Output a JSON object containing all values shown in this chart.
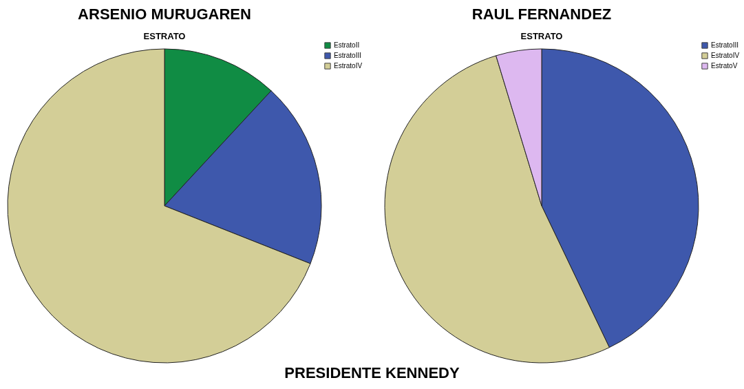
{
  "chart_data": [
    {
      "type": "pie",
      "title": "ARSENIO MURUGAREN",
      "subtitle": "ESTRATO",
      "categories": [
        "EstratoII",
        "EstratoIII",
        "EstratoIV"
      ],
      "values": [
        11.9,
        19.1,
        69.0
      ],
      "colors": [
        "#108c44",
        "#3e58ac",
        "#d3ce97"
      ],
      "legend": "top right",
      "annotations": [
        "PRESIDENTE KENNEDY"
      ]
    },
    {
      "type": "pie",
      "title": "RAUL FERNANDEZ",
      "subtitle": "ESTRATO",
      "categories": [
        "EstratoIII",
        "EstratoIV",
        "EstratoV"
      ],
      "values": [
        42.9,
        52.4,
        4.7
      ],
      "colors": [
        "#3e58ac",
        "#d3ce97",
        "#ddb8f0"
      ],
      "legend": "top right"
    }
  ]
}
